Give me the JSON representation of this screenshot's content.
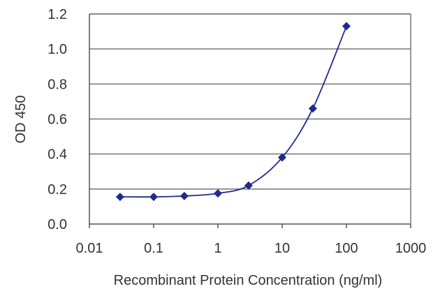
{
  "chart_data": {
    "type": "scatter",
    "title": "",
    "xlabel": "Recombinant Protein Concentration (ng/ml)",
    "ylabel": "OD 450",
    "xscale": "log",
    "xlim": [
      0.01,
      1000
    ],
    "ylim": [
      0.0,
      1.2
    ],
    "x_ticks": [
      0.01,
      0.1,
      1,
      10,
      100,
      1000
    ],
    "x_tick_labels": [
      "0.01",
      "0.1",
      "1",
      "10",
      "100",
      "1000"
    ],
    "y_ticks": [
      0.0,
      0.2,
      0.4,
      0.6,
      0.8,
      1.0,
      1.2
    ],
    "y_tick_labels": [
      "0.0",
      "0.2",
      "0.4",
      "0.6",
      "0.8",
      "1.0",
      "1.2"
    ],
    "grid": "horizontal",
    "legend": "none",
    "series": [
      {
        "marker": "diamond",
        "fit_line": true,
        "color": "#1f2a8c",
        "x": [
          0.03,
          0.1,
          0.3,
          1,
          3,
          10,
          30,
          100
        ],
        "y": [
          0.155,
          0.155,
          0.16,
          0.175,
          0.22,
          0.38,
          0.66,
          1.13
        ]
      }
    ],
    "colors": {
      "series": "#1f2a8c",
      "grid": "#777777",
      "axis": "#555555",
      "text": "#333333"
    }
  }
}
